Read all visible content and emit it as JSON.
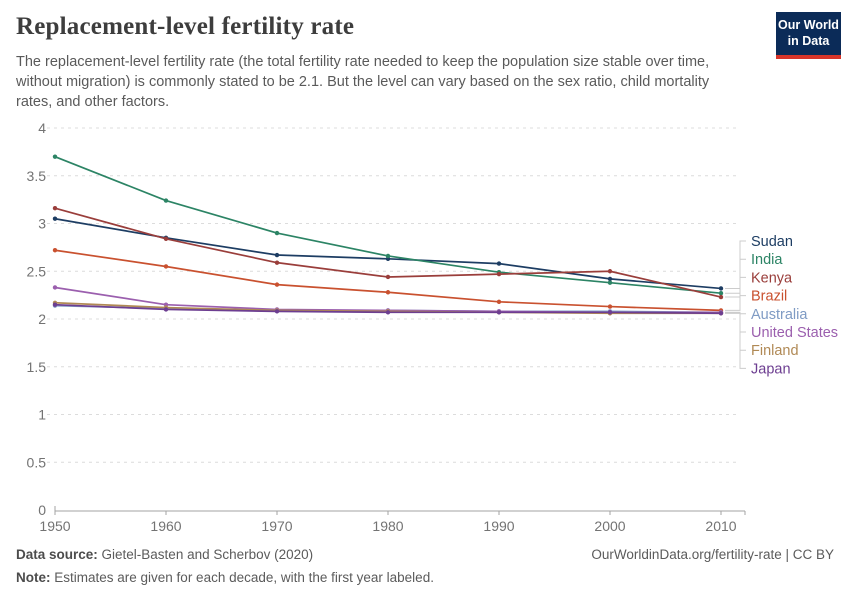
{
  "header": {
    "title": "Replacement-level fertility rate",
    "subtitle": "The replacement-level fertility rate (the total fertility rate needed to keep the population size stable over time, without migration) is commonly stated to be 2.1. But the level can vary based on the sex ratio, child mortality rates, and other factors.",
    "logo": {
      "line1": "Our World",
      "line2": "in Data",
      "bg_color": "#0b2b58",
      "accent_color": "#d8352a"
    }
  },
  "chart_data": {
    "type": "line",
    "x": [
      1950,
      1960,
      1970,
      1980,
      1990,
      2000,
      2010
    ],
    "x_tick_labels": [
      "1950",
      "1960",
      "1970",
      "1980",
      "1990",
      "2000",
      "2010"
    ],
    "y_ticks": [
      0,
      0.5,
      1,
      1.5,
      2,
      2.5,
      3,
      3.5,
      4
    ],
    "ylim": [
      0,
      4
    ],
    "grid": true,
    "legend_position": "right",
    "series": [
      {
        "name": "Sudan",
        "color": "#1d3d63",
        "values": [
          3.05,
          2.85,
          2.67,
          2.63,
          2.58,
          2.42,
          2.32
        ]
      },
      {
        "name": "India",
        "color": "#2c8465",
        "values": [
          3.7,
          3.24,
          2.9,
          2.66,
          2.49,
          2.38,
          2.27
        ]
      },
      {
        "name": "Kenya",
        "color": "#9a3e3b",
        "values": [
          3.16,
          2.84,
          2.59,
          2.44,
          2.47,
          2.5,
          2.23
        ]
      },
      {
        "name": "Brazil",
        "color": "#c9512f",
        "values": [
          2.72,
          2.55,
          2.36,
          2.28,
          2.18,
          2.13,
          2.09
        ]
      },
      {
        "name": "Australia",
        "color": "#7f9bc4",
        "values": [
          2.14,
          2.11,
          2.09,
          2.09,
          2.08,
          2.08,
          2.07
        ]
      },
      {
        "name": "United States",
        "color": "#9b5fae",
        "values": [
          2.33,
          2.15,
          2.1,
          2.09,
          2.08,
          2.07,
          2.07
        ]
      },
      {
        "name": "Finland",
        "color": "#b08955",
        "values": [
          2.17,
          2.12,
          2.09,
          2.08,
          2.07,
          2.06,
          2.06
        ]
      },
      {
        "name": "Japan",
        "color": "#6d3e91",
        "values": [
          2.15,
          2.1,
          2.08,
          2.07,
          2.07,
          2.07,
          2.06
        ]
      }
    ]
  },
  "footer": {
    "source_label": "Data source:",
    "source_text": " Gietel-Basten and Scherbov (2020)",
    "rights": "OurWorldinData.org/fertility-rate | CC BY",
    "note_label": "Note:",
    "note_text": " Estimates are given for each decade, with the first year labeled."
  }
}
